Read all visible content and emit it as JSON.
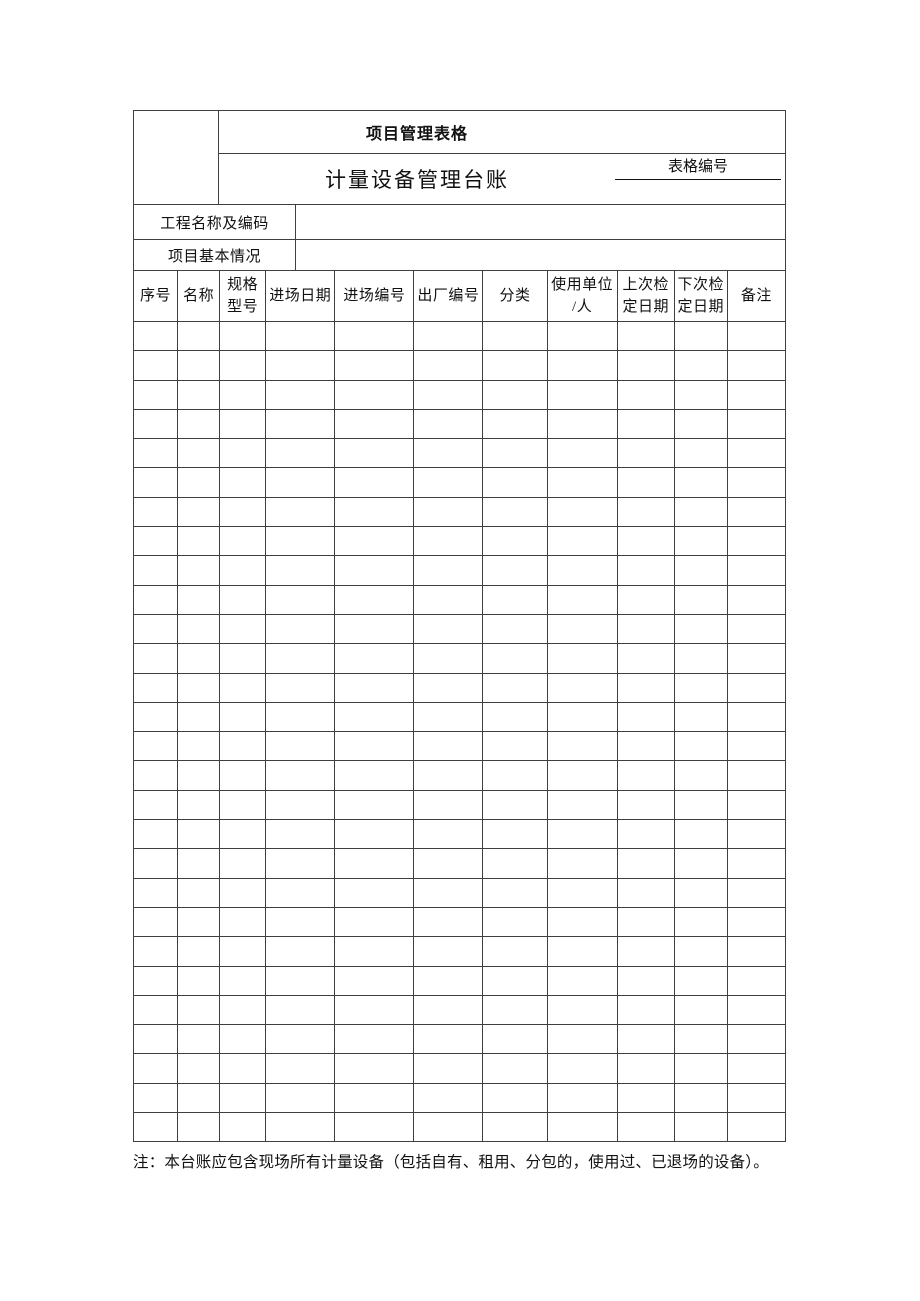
{
  "document": {
    "header": {
      "main_title": "项目管理表格",
      "sub_title": "计量设备管理台账",
      "form_number_label": "表格编号",
      "form_number_value": ""
    },
    "info_rows": [
      {
        "label": "工程名称及编码",
        "value": ""
      },
      {
        "label": "项目基本情况",
        "value": ""
      }
    ],
    "equipment_table": {
      "columns": [
        "序号",
        "名称",
        "规格\n型号",
        "进场日期",
        "进场编号",
        "出厂编号",
        "分类",
        "使用单位\n/人",
        "上次检\n定日期",
        "下次检\n定日期",
        "备注"
      ],
      "empty_row_count": 28
    },
    "footnote": "注：本台账应包含现场所有计量设备（包括自有、租用、分包的，使用过、已退场的设备）。"
  },
  "colors": {
    "border": "#3f3f3f",
    "text": "#111111",
    "background": "#ffffff"
  }
}
